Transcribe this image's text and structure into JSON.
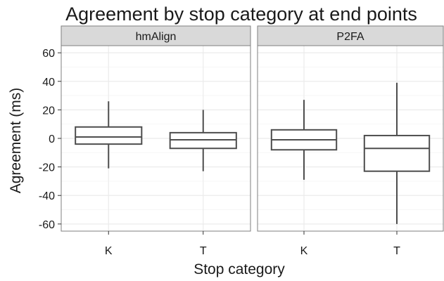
{
  "chart_data": {
    "type": "boxplot",
    "title": "Agreement by stop category at end points",
    "xlabel": "Stop category",
    "ylabel": "Agreement (ms)",
    "ylim": [
      -65,
      65
    ],
    "y_ticks": [
      -60,
      -40,
      -20,
      0,
      20,
      40,
      60
    ],
    "categories": [
      "K",
      "T"
    ],
    "grid": true,
    "panels": [
      {
        "name": "hmAlign",
        "boxes": [
          {
            "category": "K",
            "min": -21,
            "q1": -4,
            "median": 1,
            "q3": 8,
            "max": 26
          },
          {
            "category": "T",
            "min": -23,
            "q1": -7,
            "median": -1,
            "q3": 4,
            "max": 20
          }
        ]
      },
      {
        "name": "P2FA",
        "boxes": [
          {
            "category": "K",
            "min": -29,
            "q1": -8,
            "median": -1,
            "q3": 6,
            "max": 27
          },
          {
            "category": "T",
            "min": -60,
            "q1": -23,
            "median": -7,
            "q3": 2,
            "max": 39
          }
        ]
      }
    ],
    "colors": {
      "strip_bg": "#d9d9d9",
      "strip_border": "#7f7f7f",
      "panel_border": "#7f7f7f",
      "grid_major": "#ebebeb",
      "grid_minor": "#f5f5f5",
      "box_stroke": "#4d4d4d"
    }
  }
}
